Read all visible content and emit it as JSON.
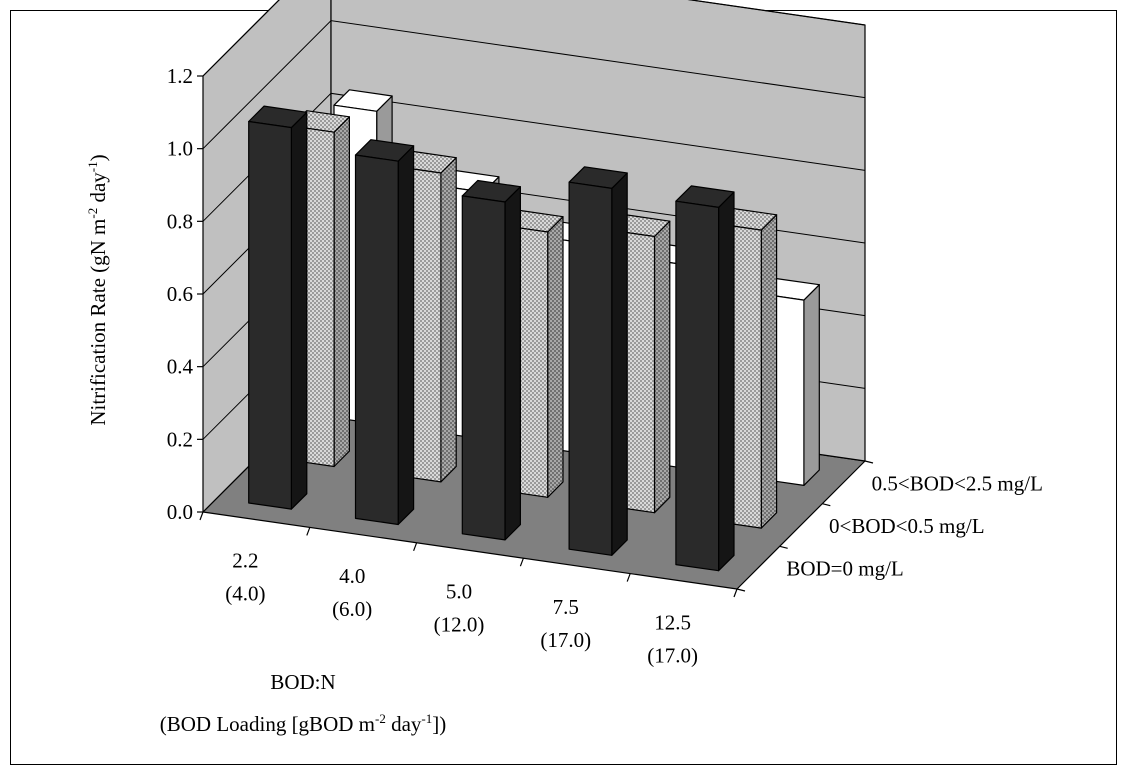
{
  "chart_data": {
    "type": "bar",
    "three_d": true,
    "title": "",
    "ylabel": {
      "main": "Nitrification Rate (gN m",
      "exp1": "-2",
      "mid": " day",
      "exp2": "-1",
      "end": ")"
    },
    "xlabel": {
      "line1": "BOD:N",
      "line2_main": "(BOD Loading [gBOD m",
      "line2_exp1": "-2",
      "line2_mid": " day",
      "line2_exp2": "-1",
      "line2_end": "])"
    },
    "ylim": [
      0,
      1.2
    ],
    "yticks": [
      "0.0",
      "0.2",
      "0.4",
      "0.6",
      "0.8",
      "1.0",
      "1.2"
    ],
    "categories": [
      {
        "top": "2.2",
        "bottom": "(4.0)"
      },
      {
        "top": "4.0",
        "bottom": "(6.0)"
      },
      {
        "top": "5.0",
        "bottom": "(12.0)"
      },
      {
        "top": "7.5",
        "bottom": "(17.0)"
      },
      {
        "top": "12.5",
        "bottom": "(17.0)"
      }
    ],
    "series": [
      {
        "name": "BOD=0 mg/L",
        "values": [
          1.05,
          1.0,
          0.93,
          1.01,
          1.0
        ]
      },
      {
        "name": "0<BOD<0.5 mg/L",
        "values": [
          0.92,
          0.85,
          0.73,
          0.76,
          0.82
        ]
      },
      {
        "name": "0.5<BOD<2.5 mg/L",
        "values": [
          0.86,
          0.68,
          0.58,
          0.56,
          0.51
        ]
      }
    ],
    "grid": true,
    "legend": "depth-axis-right",
    "colors": {
      "wall": "#c0c0c0",
      "floor": "#808080",
      "series0_front": "#2a2a2a",
      "series0_side": "#151515",
      "series1_front": "#cfcfcf",
      "series1_side": "#a0a0a0",
      "series2_front": "#ffffff",
      "series2_side": "#9a9a9a"
    }
  }
}
